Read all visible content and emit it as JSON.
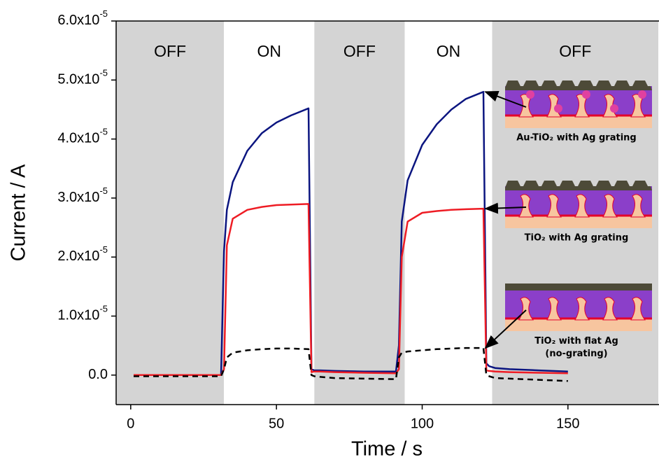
{
  "chart_data": {
    "type": "line",
    "x_label": "Time / s",
    "y_label": "Current / A",
    "xlim": [
      -5,
      181
    ],
    "xticks": [
      0,
      50,
      100,
      150
    ],
    "ylim": [
      -5e-06,
      6e-05
    ],
    "yticks": [
      {
        "value": 0,
        "label": "0.0"
      },
      {
        "value": 1e-05,
        "label": "1.0x10-5"
      },
      {
        "value": 2e-05,
        "label": "2.0x10-5"
      },
      {
        "value": 3e-05,
        "label": "3.0x10-5"
      },
      {
        "value": 4e-05,
        "label": "4.0x10-5"
      },
      {
        "value": 5e-05,
        "label": "5.0x10-5"
      },
      {
        "value": 6e-05,
        "label": "6.0x10-5"
      }
    ],
    "phases": [
      {
        "label": "OFF",
        "start": -5,
        "end": 32,
        "color": "#d4d4d4"
      },
      {
        "label": "ON",
        "start": 32,
        "end": 63,
        "color": "#ffffff"
      },
      {
        "label": "OFF",
        "start": 63,
        "end": 94,
        "color": "#d4d4d4"
      },
      {
        "label": "ON",
        "start": 94,
        "end": 124,
        "color": "#ffffff"
      },
      {
        "label": "OFF",
        "start": 124,
        "end": 181,
        "color": "#d4d4d4"
      }
    ],
    "x": [
      1,
      31,
      32,
      33,
      35,
      40,
      45,
      50,
      55,
      61,
      62,
      63,
      65,
      70,
      80,
      91,
      92,
      93,
      95,
      100,
      105,
      110,
      115,
      121,
      122,
      123,
      125,
      130,
      140,
      150
    ],
    "series": [
      {
        "name": "Au-TiO₂ with Ag grating",
        "color": "#0b1580",
        "dash": false,
        "values": [
          0,
          0,
          2.1e-05,
          2.8e-05,
          3.27e-05,
          3.8e-05,
          4.1e-05,
          4.28e-05,
          4.4e-05,
          4.52e-05,
          1e-06,
          8e-07,
          8e-07,
          7e-07,
          6e-07,
          6e-07,
          5e-06,
          2.6e-05,
          3.3e-05,
          3.9e-05,
          4.25e-05,
          4.5e-05,
          4.68e-05,
          4.8e-05,
          2e-06,
          1.5e-06,
          1.2e-06,
          1e-06,
          8e-07,
          6e-07
        ]
      },
      {
        "name": "TiO₂ with Ag grating",
        "color": "#ee1c24",
        "dash": false,
        "values": [
          0,
          0,
          1e-06,
          2.2e-05,
          2.65e-05,
          2.8e-05,
          2.85e-05,
          2.88e-05,
          2.89e-05,
          2.9e-05,
          5e-07,
          6e-07,
          6e-07,
          5e-07,
          4e-07,
          3e-07,
          1e-06,
          2e-05,
          2.6e-05,
          2.75e-05,
          2.78e-05,
          2.8e-05,
          2.81e-05,
          2.82e-05,
          8e-07,
          7e-07,
          6e-07,
          5e-07,
          4e-07,
          3e-07
        ]
      },
      {
        "name": "TiO₂ with flat Ag (no-grating)",
        "color": "#000000",
        "dash": true,
        "values": [
          -2e-07,
          -2e-07,
          1e-06,
          3e-06,
          3.8e-06,
          4.2e-06,
          4.4e-06,
          4.5e-06,
          4.5e-06,
          4.4e-06,
          0,
          -2e-07,
          -3e-07,
          -5e-07,
          -6e-07,
          -7e-07,
          3e-06,
          3.8e-06,
          4e-06,
          4.2e-06,
          4.4e-06,
          4.5e-06,
          4.6e-06,
          4.6e-06,
          0,
          -2e-07,
          -5e-07,
          -6e-07,
          -8e-07,
          -1e-06
        ]
      }
    ]
  }
}
